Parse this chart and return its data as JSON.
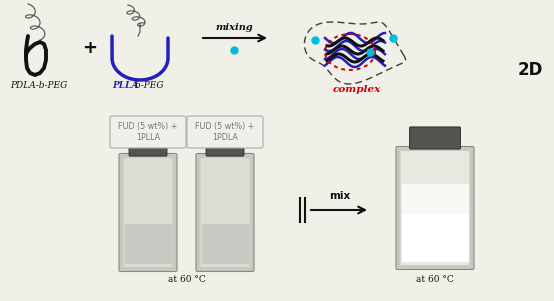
{
  "background_color": "#f0efe8",
  "label_pdla": "PDLA-b-PEG",
  "label_plla_blue": "PLLA",
  "label_plla_black": "-b-PEG",
  "label_complex": "complex",
  "label_2d": "2D",
  "label_mixing": "mixing",
  "label_mix": "mix",
  "label_at60_1": "at 60 °C",
  "label_at60_2": "at 60 °C",
  "label_fud1": "FUD (5 wt%) +\n1PLLA",
  "label_fud2": "FUD (5 wt%) +\n1PDLA",
  "plus_sign": "+",
  "black_color": "#111111",
  "blue_color": "#2222bb",
  "red_color": "#cc0000",
  "cyan_color": "#00bbdd",
  "gray_color": "#777777",
  "vial_gray": "#b0b0a8",
  "vial_light": "#d8d8d0",
  "cap_dark": "#444444",
  "cap_mid": "#666660"
}
